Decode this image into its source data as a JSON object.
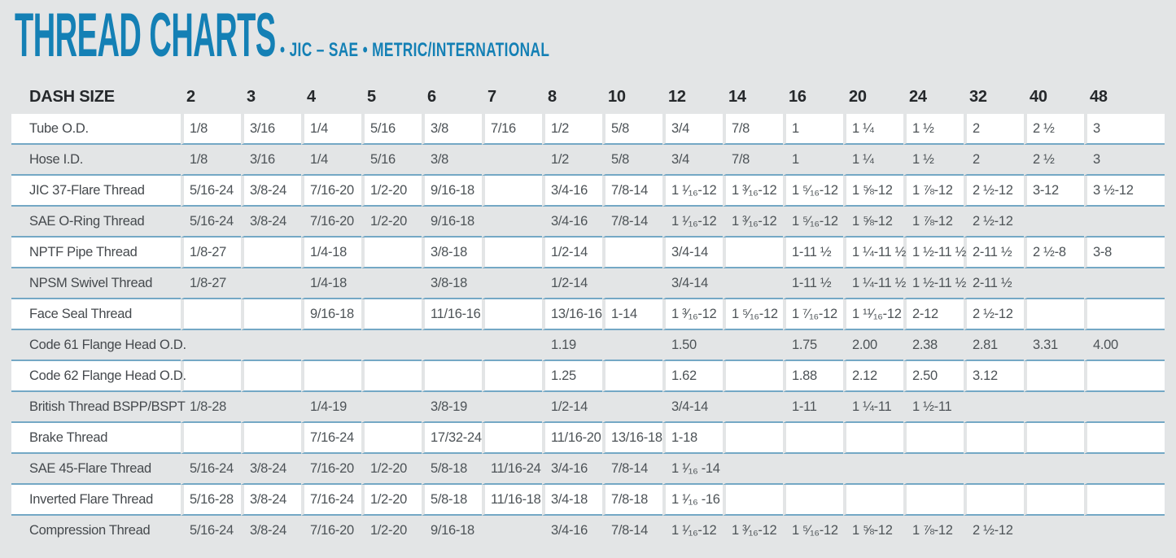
{
  "header": {
    "title": "THREAD CHARTS",
    "subtitle": "• JIC – SAE • METRIC/INTERNATIONAL"
  },
  "colors": {
    "accent_blue": "#1480b5",
    "divider_blue": "#74a8c5",
    "page_bg": "#e3e5e6",
    "header_text": "#25282b",
    "cell_text": "#4d5357",
    "white_row_bg": "#ffffff"
  },
  "table": {
    "label_header": "DASH SIZE",
    "dash_sizes": [
      "2",
      "3",
      "4",
      "5",
      "6",
      "7",
      "8",
      "10",
      "12",
      "14",
      "16",
      "20",
      "24",
      "32",
      "40",
      "48"
    ],
    "rows": [
      {
        "label": "Tube O.D.",
        "values": [
          "1/8",
          "3/16",
          "1/4",
          "5/16",
          "3/8",
          "7/16",
          "1/2",
          "5/8",
          "3/4",
          "7/8",
          "1",
          "1 ¼",
          "1 ½",
          "2",
          "2 ½",
          "3"
        ]
      },
      {
        "label": "Hose I.D.",
        "values": [
          "1/8",
          "3/16",
          "1/4",
          "5/16",
          "3/8",
          "",
          "1/2",
          "5/8",
          "3/4",
          "7/8",
          "1",
          "1 ¼",
          "1 ½",
          "2",
          "2 ½",
          "3"
        ]
      },
      {
        "label": "JIC 37-Flare Thread",
        "values": [
          "5/16-24",
          "3/8-24",
          "7/16-20",
          "1/2-20",
          "9/16-18",
          "",
          "3/4-16",
          "7/8-14",
          "1 ¹⁄₁₆-12",
          "1 ³⁄₁₆-12",
          "1 ⁵⁄₁₆-12",
          "1 ⅝-12",
          "1 ⅞-12",
          "2 ½-12",
          "3-12",
          "3 ½-12"
        ]
      },
      {
        "label": "SAE O-Ring Thread",
        "values": [
          "5/16-24",
          "3/8-24",
          "7/16-20",
          "1/2-20",
          "9/16-18",
          "",
          "3/4-16",
          "7/8-14",
          "1 ¹⁄₁₆-12",
          "1 ³⁄₁₆-12",
          "1 ⁵⁄₁₆-12",
          "1 ⅝-12",
          "1 ⅞-12",
          "2 ½-12",
          "",
          ""
        ]
      },
      {
        "label": "NPTF Pipe Thread",
        "values": [
          "1/8-27",
          "",
          "1/4-18",
          "",
          "3/8-18",
          "",
          "1/2-14",
          "",
          "3/4-14",
          "",
          "1-11 ½",
          "1 ¼-11 ½",
          "1 ½-11 ½",
          "2-11 ½",
          "2 ½-8",
          "3-8"
        ]
      },
      {
        "label": "NPSM Swivel Thread",
        "values": [
          "1/8-27",
          "",
          "1/4-18",
          "",
          "3/8-18",
          "",
          "1/2-14",
          "",
          "3/4-14",
          "",
          "1-11 ½",
          "1 ¼-11 ½",
          "1 ½-11 ½",
          "2-11 ½",
          "",
          ""
        ]
      },
      {
        "label": "Face Seal Thread",
        "values": [
          "",
          "",
          "9/16-18",
          "",
          "11/16-16",
          "",
          "13/16-16",
          "1-14",
          "1 ³⁄₁₆-12",
          "1 ⁵⁄₁₆-12",
          "1 ⁷⁄₁₆-12",
          "1 ¹¹⁄₁₆-12",
          "2-12",
          "2 ½-12",
          "",
          ""
        ]
      },
      {
        "label": "Code 61 Flange Head O.D.",
        "values": [
          "",
          "",
          "",
          "",
          "",
          "",
          "1.19",
          "",
          "1.50",
          "",
          "1.75",
          "2.00",
          "2.38",
          "2.81",
          "3.31",
          "4.00"
        ]
      },
      {
        "label": "Code 62 Flange Head O.D.",
        "values": [
          "",
          "",
          "",
          "",
          "",
          "",
          "1.25",
          "",
          "1.62",
          "",
          "1.88",
          "2.12",
          "2.50",
          "3.12",
          "",
          ""
        ]
      },
      {
        "label": "British Thread BSPP/BSPT",
        "values": [
          "1/8-28",
          "",
          "1/4-19",
          "",
          "3/8-19",
          "",
          "1/2-14",
          "",
          "3/4-14",
          "",
          "1-11",
          "1 ¼-11",
          "1 ½-11",
          "",
          "",
          ""
        ]
      },
      {
        "label": "Brake Thread",
        "values": [
          "",
          "",
          "7/16-24",
          "",
          "17/32-24",
          "",
          "11/16-20",
          "13/16-18",
          "1-18",
          "",
          "",
          "",
          "",
          "",
          "",
          ""
        ]
      },
      {
        "label": "SAE 45-Flare Thread",
        "values": [
          "5/16-24",
          "3/8-24",
          "7/16-20",
          "1/2-20",
          "5/8-18",
          "11/16-24",
          "3/4-16",
          "7/8-14",
          "1 ¹⁄₁₆ -14",
          "",
          "",
          "",
          "",
          "",
          "",
          ""
        ]
      },
      {
        "label": "Inverted Flare Thread",
        "values": [
          "5/16-28",
          "3/8-24",
          "7/16-24",
          "1/2-20",
          "5/8-18",
          "11/16-18",
          "3/4-18",
          "7/8-18",
          "1 ¹⁄₁₆ -16",
          "",
          "",
          "",
          "",
          "",
          "",
          ""
        ]
      },
      {
        "label": "Compression Thread",
        "values": [
          "5/16-24",
          "3/8-24",
          "7/16-20",
          "1/2-20",
          "9/16-18",
          "",
          "3/4-16",
          "7/8-14",
          "1 ¹⁄₁₆-12",
          "1 ³⁄₁₆-12",
          "1 ⁵⁄₁₆-12",
          "1 ⅝-12",
          "1 ⅞-12",
          "2 ½-12",
          "",
          ""
        ]
      }
    ]
  }
}
